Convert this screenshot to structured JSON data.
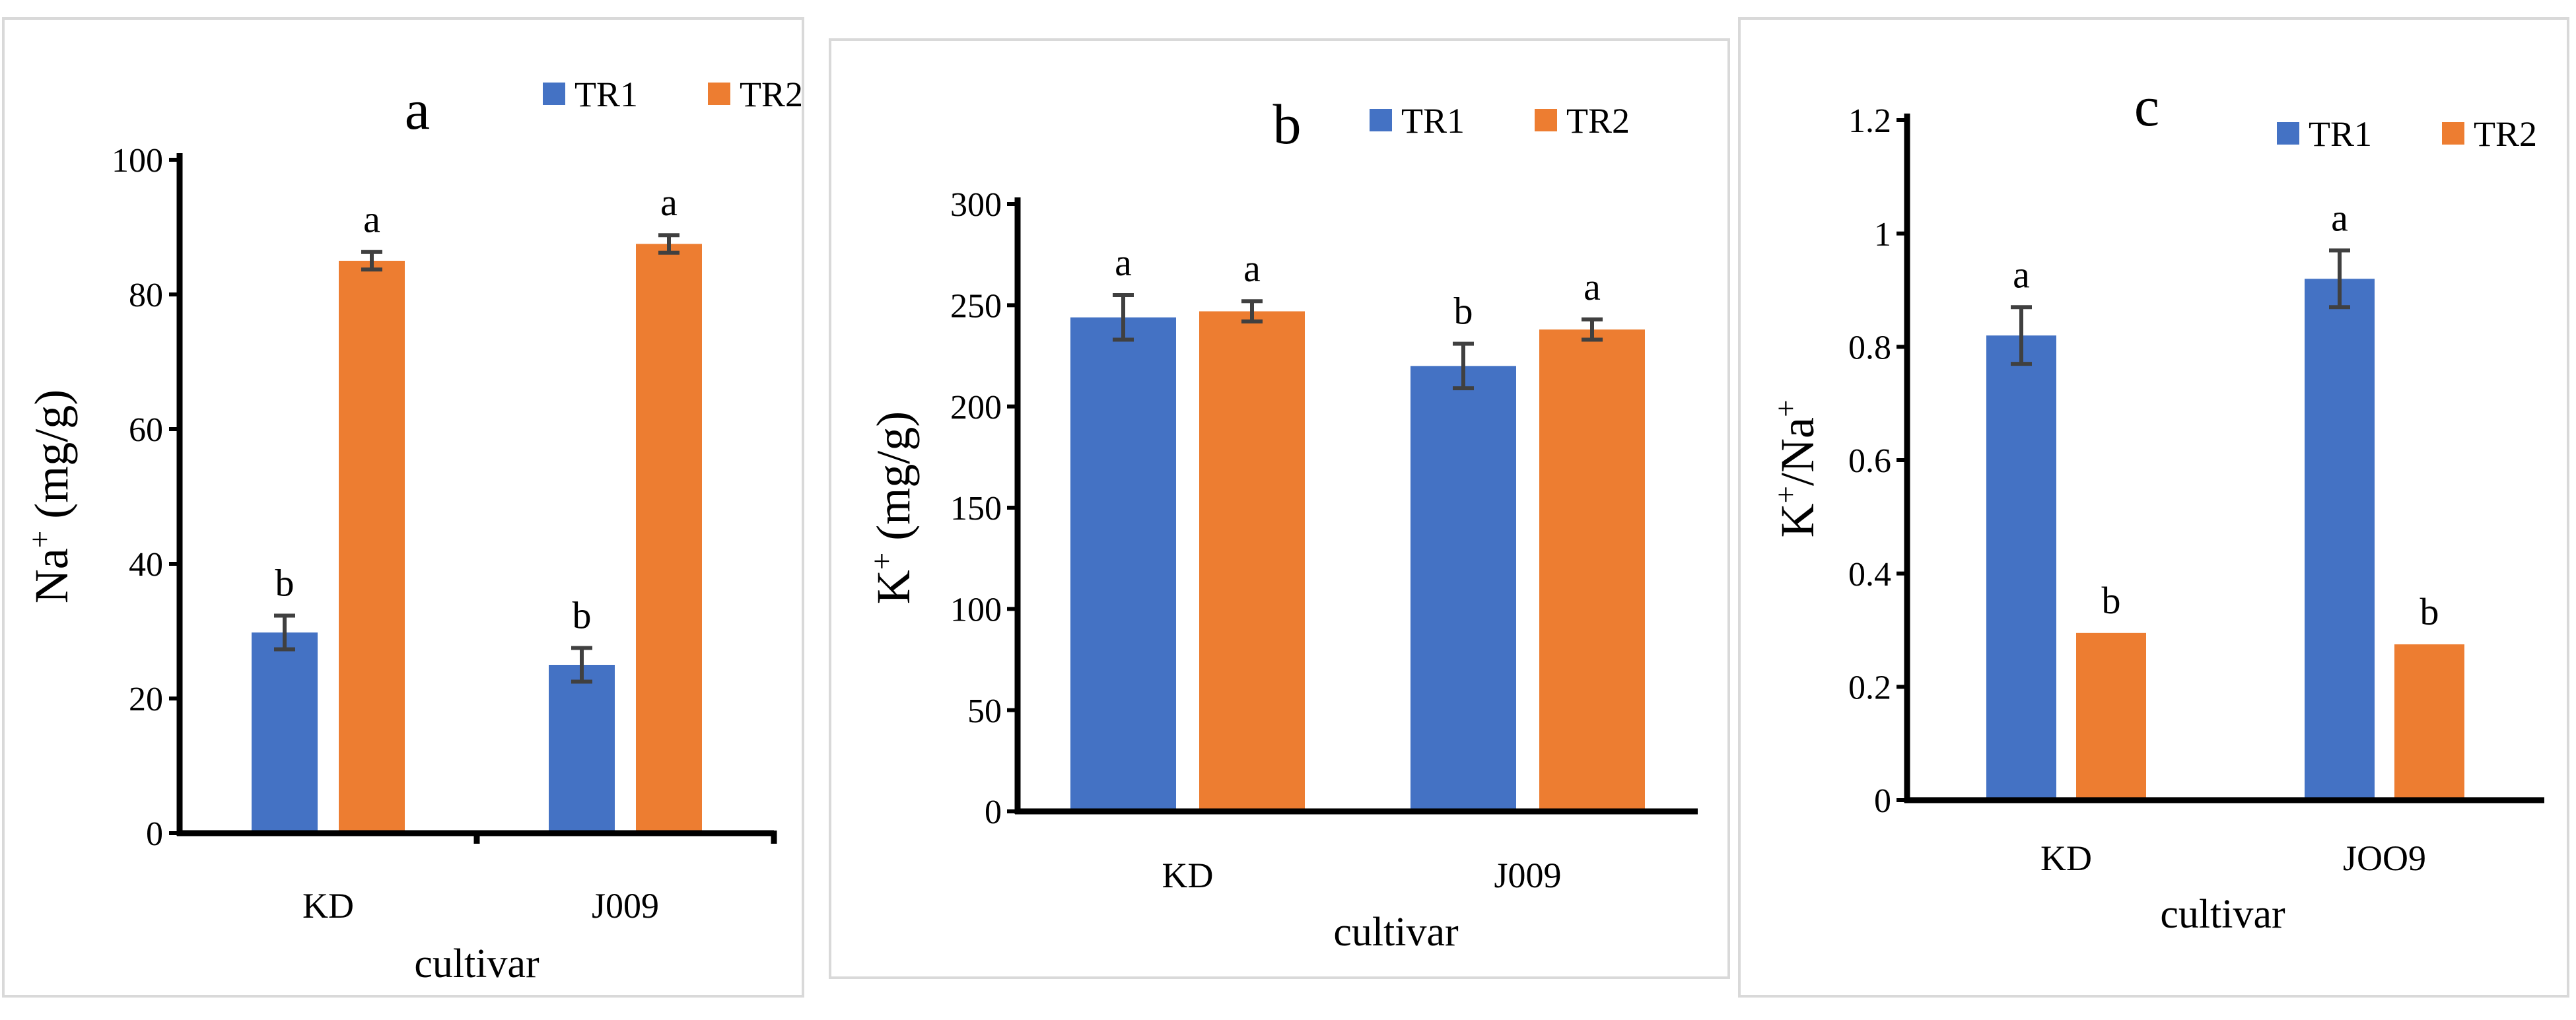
{
  "colors": {
    "TR1": "#4472c4",
    "TR2": "#ed7d31",
    "error_bar": "#404040",
    "axis": "#000000",
    "border": "#d9d9d9"
  },
  "chart_data": [
    {
      "type": "bar",
      "panel_label": "a",
      "categories": [
        "KD",
        "J009"
      ],
      "series": [
        {
          "name": "TR1",
          "values": [
            29.8,
            25.0
          ],
          "errors": [
            2.5,
            2.5
          ],
          "letters": [
            "b",
            "b"
          ]
        },
        {
          "name": "TR2",
          "values": [
            85.0,
            87.5
          ],
          "errors": [
            1.3,
            1.3
          ],
          "letters": [
            "a",
            "a"
          ]
        }
      ],
      "xlabel": "cultivar",
      "ylabel_main": "Na",
      "ylabel_sup": "+",
      "ylabel_tail": " (mg/g)",
      "ylim": [
        0,
        100
      ],
      "yticks": [
        0,
        20,
        40,
        60,
        80,
        100
      ],
      "legend_position": "top-right",
      "grid": false
    },
    {
      "type": "bar",
      "panel_label": "b",
      "categories": [
        "KD",
        "J009"
      ],
      "series": [
        {
          "name": "TR1",
          "values": [
            244,
            220
          ],
          "errors": [
            11,
            11
          ],
          "letters": [
            "a",
            "b"
          ]
        },
        {
          "name": "TR2",
          "values": [
            247,
            238
          ],
          "errors": [
            5,
            5
          ],
          "letters": [
            "a",
            "a"
          ]
        }
      ],
      "xlabel": "cultivar",
      "ylabel_main": "K",
      "ylabel_sup": "+",
      "ylabel_tail": " (mg/g)",
      "ylim": [
        0,
        300
      ],
      "yticks": [
        0,
        50,
        100,
        150,
        200,
        250,
        300
      ],
      "legend_position": "top-right",
      "grid": false
    },
    {
      "type": "bar",
      "panel_label": "c",
      "categories": [
        "KD",
        "JOO9"
      ],
      "series": [
        {
          "name": "TR1",
          "values": [
            0.82,
            0.92
          ],
          "errors": [
            0.05,
            0.05
          ],
          "letters": [
            "a",
            "a"
          ]
        },
        {
          "name": "TR2",
          "values": [
            0.295,
            0.275
          ],
          "errors": [
            0,
            0
          ],
          "letters": [
            "b",
            "b"
          ]
        }
      ],
      "xlabel": "cultivar",
      "ylabel_main": "K",
      "ylabel_sup": "+",
      "ylabel_tail": "/Na",
      "ylabel_sup2": "+",
      "ylim": [
        0,
        1.2
      ],
      "yticks": [
        "0",
        "0.2",
        "0.4",
        "0.6",
        "0.8",
        "1",
        "1.2"
      ],
      "legend_position": "top-right",
      "grid": false
    }
  ]
}
